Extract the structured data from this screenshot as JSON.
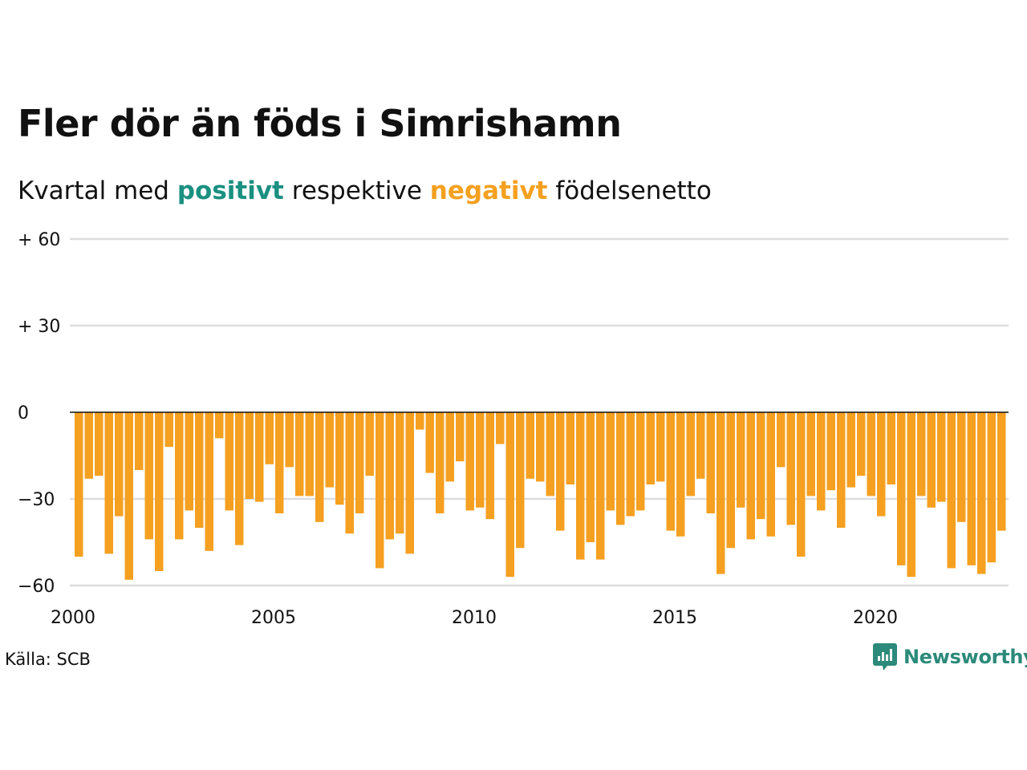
{
  "header": {
    "title": "Fler dör än föds i Simrishamn",
    "subtitle_prefix": "Kvartal med",
    "subtitle_positive": "positivt",
    "subtitle_middle": "respektive",
    "subtitle_negative": "negativt",
    "subtitle_suffix": "födelsenetto"
  },
  "colors": {
    "positive": "#1a9080",
    "negative": "#f5a020",
    "grid": "#dddddd",
    "zero_line": "#111111",
    "brand": "#2b8a7a"
  },
  "footer": {
    "source": "Källa: SCB",
    "brand": "Newsworthy",
    "brand_icon": "newsworthy-logo-icon"
  },
  "chart_data": {
    "type": "bar",
    "title": "Fler dör än föds i Simrishamn",
    "subtitle": "Kvartal med positivt respektive negativt födelsenetto",
    "xlabel": "",
    "ylabel": "",
    "x_start": "2000 Q1",
    "frequency": "quarterly",
    "x_ticks": [
      "2000",
      "2005",
      "2010",
      "2015",
      "2020"
    ],
    "y_ticks": [
      {
        "value": 60,
        "label": "+ 60"
      },
      {
        "value": 30,
        "label": "+ 30"
      },
      {
        "value": 0,
        "label": "0"
      },
      {
        "value": -30,
        "label": "−30"
      },
      {
        "value": -60,
        "label": "−60"
      }
    ],
    "ylim": [
      -60,
      60
    ],
    "grid": true,
    "legend": "none",
    "values": [
      -50,
      -23,
      -22,
      -49,
      -36,
      -58,
      -20,
      -44,
      -55,
      -12,
      -44,
      -34,
      -40,
      -48,
      -9,
      -34,
      -46,
      -30,
      -31,
      -18,
      -35,
      -19,
      -29,
      -29,
      -38,
      -26,
      -32,
      -42,
      -35,
      -22,
      -54,
      -44,
      -42,
      -49,
      -6,
      -21,
      -35,
      -24,
      -17,
      -34,
      -33,
      -37,
      -11,
      -57,
      -47,
      -23,
      -24,
      -29,
      -41,
      -25,
      -51,
      -45,
      -51,
      -34,
      -39,
      -36,
      -34,
      -25,
      -24,
      -41,
      -43,
      -29,
      -23,
      -35,
      -56,
      -47,
      -33,
      -44,
      -37,
      -43,
      -19,
      -39,
      -50,
      -29,
      -34,
      -27,
      -40,
      -26,
      -22,
      -29,
      -36,
      -25,
      -53,
      -57,
      -29,
      -33,
      -31,
      -54,
      -38,
      -53,
      -56,
      -52,
      -41
    ]
  }
}
